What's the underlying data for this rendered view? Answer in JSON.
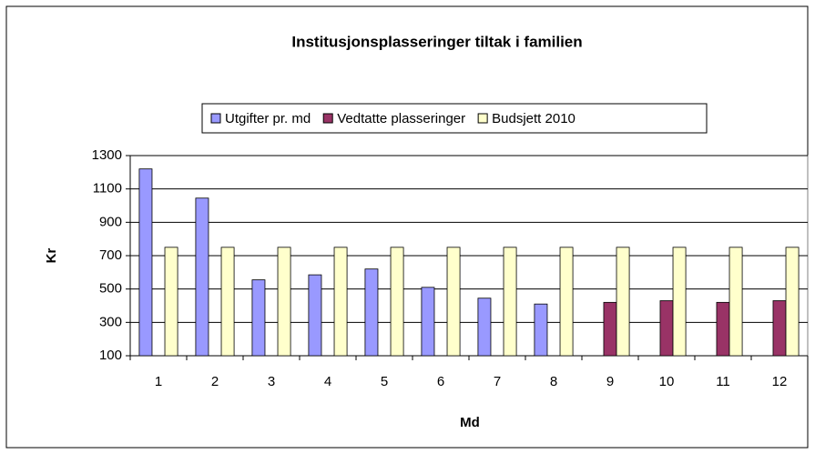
{
  "chart_data": {
    "type": "bar",
    "title": "Institusjonsplasseringer tiltak i familien",
    "x_label": "Md",
    "y_label": "Kr",
    "categories": [
      "1",
      "2",
      "3",
      "4",
      "5",
      "6",
      "7",
      "8",
      "9",
      "10",
      "11",
      "12"
    ],
    "series": [
      {
        "name": "Utgifter pr. md",
        "color": "#9999ff",
        "values": [
          1220,
          1045,
          555,
          585,
          620,
          510,
          445,
          410,
          null,
          null,
          null,
          null
        ]
      },
      {
        "name": "Vedtatte plasseringer",
        "color": "#993366",
        "values": [
          null,
          null,
          null,
          null,
          null,
          null,
          null,
          null,
          420,
          430,
          420,
          430
        ]
      },
      {
        "name": "Budsjett 2010",
        "color": "#ffffcc",
        "values": [
          750,
          750,
          750,
          750,
          750,
          750,
          750,
          750,
          750,
          750,
          750,
          750
        ]
      }
    ],
    "ylim": [
      100,
      1300
    ],
    "yticks": [
      100,
      300,
      500,
      700,
      900,
      1100,
      1300
    ],
    "grid": true,
    "legend": "top"
  }
}
